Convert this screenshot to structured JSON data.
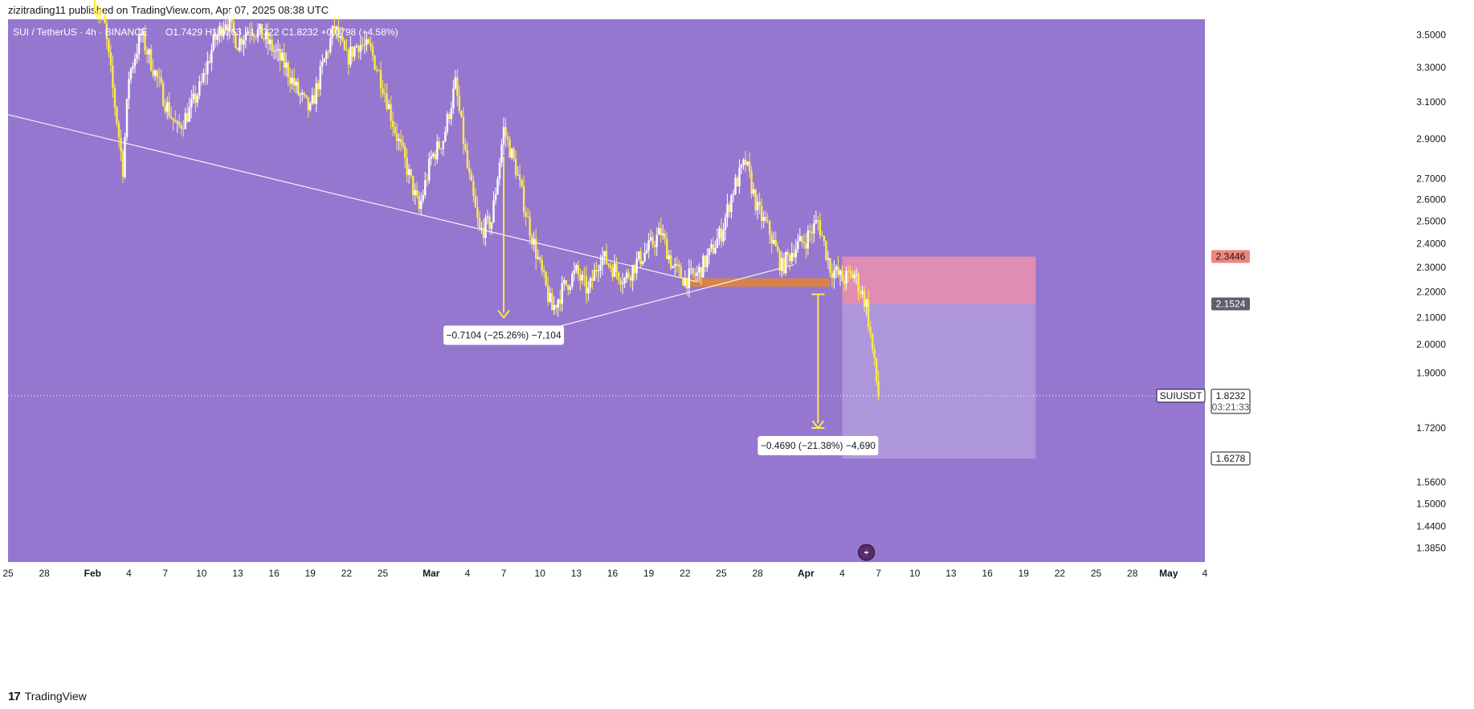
{
  "header": {
    "publish_line": "zizitrading11 published on TradingView.com, Apr 07, 2025 08:38 UTC"
  },
  "footer": {
    "brand_logo": "17",
    "brand_name": "TradingView"
  },
  "colors": {
    "plot_background": "#9577cf",
    "axis_background": "#ffffff",
    "candle_up": "#ffffff",
    "candle_down": "#ffe94a",
    "trendline": "#ffffff",
    "support_zone": "#e0863a",
    "stop_zone": "#e78fb0",
    "target_zone": "#b6a2dd",
    "stop_tag": "#f0867f",
    "entry_tag": "#5d606b",
    "arrow": "#ffe94a"
  },
  "chart_data": {
    "type": "candlestick",
    "symbol_legend": "SUI / TetherUS · 4h · BINANCE",
    "ohlc_legend": "O1.7429 H1.8263 L1.7322 C1.8232 +0.0798 (+4.58%)",
    "y_axis": {
      "scale": "log",
      "ylim": [
        1.35,
        3.6
      ],
      "ticks": [
        "3.5000",
        "3.3000",
        "3.1000",
        "2.9000",
        "2.7000",
        "2.6000",
        "2.5000",
        "2.4000",
        "2.3000",
        "2.2000",
        "2.1000",
        "2.0000",
        "1.9000",
        "1.7200",
        "1.5600",
        "1.5000",
        "1.4400",
        "1.3850"
      ]
    },
    "x_axis": {
      "xlim": [
        "2025-01-25",
        "2025-05-04"
      ],
      "ticks": [
        {
          "date": "2025-01-25",
          "label": "25"
        },
        {
          "date": "2025-01-28",
          "label": "28"
        },
        {
          "date": "2025-02-01",
          "label": "Feb",
          "strong": true
        },
        {
          "date": "2025-02-04",
          "label": "4"
        },
        {
          "date": "2025-02-07",
          "label": "7"
        },
        {
          "date": "2025-02-10",
          "label": "10"
        },
        {
          "date": "2025-02-13",
          "label": "13"
        },
        {
          "date": "2025-02-16",
          "label": "16"
        },
        {
          "date": "2025-02-19",
          "label": "19"
        },
        {
          "date": "2025-02-22",
          "label": "22"
        },
        {
          "date": "2025-02-25",
          "label": "25"
        },
        {
          "date": "2025-03-01",
          "label": "Mar",
          "strong": true
        },
        {
          "date": "2025-03-04",
          "label": "4"
        },
        {
          "date": "2025-03-07",
          "label": "7"
        },
        {
          "date": "2025-03-10",
          "label": "10"
        },
        {
          "date": "2025-03-13",
          "label": "13"
        },
        {
          "date": "2025-03-16",
          "label": "16"
        },
        {
          "date": "2025-03-19",
          "label": "19"
        },
        {
          "date": "2025-03-22",
          "label": "22"
        },
        {
          "date": "2025-03-25",
          "label": "25"
        },
        {
          "date": "2025-03-28",
          "label": "28"
        },
        {
          "date": "2025-04-01",
          "label": "Apr",
          "strong": true
        },
        {
          "date": "2025-04-04",
          "label": "4"
        },
        {
          "date": "2025-04-07",
          "label": "7"
        },
        {
          "date": "2025-04-10",
          "label": "10"
        },
        {
          "date": "2025-04-13",
          "label": "13"
        },
        {
          "date": "2025-04-16",
          "label": "16"
        },
        {
          "date": "2025-04-19",
          "label": "19"
        },
        {
          "date": "2025-04-22",
          "label": "22"
        },
        {
          "date": "2025-04-25",
          "label": "25"
        },
        {
          "date": "2025-04-28",
          "label": "28"
        },
        {
          "date": "2025-05-01",
          "label": "May",
          "strong": true
        },
        {
          "date": "2025-05-04",
          "label": "4"
        }
      ]
    },
    "price_path": [
      [
        "2025-02-01",
        3.75
      ],
      [
        "2025-02-02",
        3.55
      ],
      [
        "2025-02-03",
        3.0
      ],
      [
        "2025-02-03",
        2.75
      ],
      [
        "2025-02-04",
        3.25
      ],
      [
        "2025-02-05",
        3.5
      ],
      [
        "2025-02-06",
        3.3
      ],
      [
        "2025-02-07",
        3.1
      ],
      [
        "2025-02-08",
        2.95
      ],
      [
        "2025-02-09",
        3.05
      ],
      [
        "2025-02-10",
        3.2
      ],
      [
        "2025-02-11",
        3.45
      ],
      [
        "2025-02-12",
        3.6
      ],
      [
        "2025-02-13",
        3.45
      ],
      [
        "2025-02-14",
        3.55
      ],
      [
        "2025-02-15",
        3.5
      ],
      [
        "2025-02-16",
        3.4
      ],
      [
        "2025-02-17",
        3.3
      ],
      [
        "2025-02-18",
        3.15
      ],
      [
        "2025-02-19",
        3.05
      ],
      [
        "2025-02-20",
        3.3
      ],
      [
        "2025-02-21",
        3.55
      ],
      [
        "2025-02-22",
        3.35
      ],
      [
        "2025-02-23",
        3.45
      ],
      [
        "2025-02-24",
        3.4
      ],
      [
        "2025-02-25",
        3.2
      ],
      [
        "2025-02-26",
        2.95
      ],
      [
        "2025-02-27",
        2.75
      ],
      [
        "2025-02-28",
        2.55
      ],
      [
        "2025-03-01",
        2.8
      ],
      [
        "2025-03-02",
        2.9
      ],
      [
        "2025-03-03",
        3.2
      ],
      [
        "2025-03-04",
        2.75
      ],
      [
        "2025-03-05",
        2.45
      ],
      [
        "2025-03-06",
        2.5
      ],
      [
        "2025-03-07",
        2.95
      ],
      [
        "2025-03-08",
        2.75
      ],
      [
        "2025-03-09",
        2.5
      ],
      [
        "2025-03-10",
        2.3
      ],
      [
        "2025-03-11",
        2.13
      ],
      [
        "2025-03-12",
        2.22
      ],
      [
        "2025-03-13",
        2.28
      ],
      [
        "2025-03-14",
        2.2
      ],
      [
        "2025-03-15",
        2.35
      ],
      [
        "2025-03-16",
        2.3
      ],
      [
        "2025-03-17",
        2.25
      ],
      [
        "2025-03-18",
        2.32
      ],
      [
        "2025-03-19",
        2.38
      ],
      [
        "2025-03-20",
        2.45
      ],
      [
        "2025-03-21",
        2.3
      ],
      [
        "2025-03-22",
        2.25
      ],
      [
        "2025-03-23",
        2.27
      ],
      [
        "2025-03-24",
        2.35
      ],
      [
        "2025-03-25",
        2.45
      ],
      [
        "2025-03-26",
        2.65
      ],
      [
        "2025-03-27",
        2.78
      ],
      [
        "2025-03-28",
        2.55
      ],
      [
        "2025-03-29",
        2.45
      ],
      [
        "2025-03-30",
        2.3
      ],
      [
        "2025-03-31",
        2.38
      ],
      [
        "2025-04-01",
        2.42
      ],
      [
        "2025-04-02",
        2.5
      ],
      [
        "2025-04-03",
        2.3
      ],
      [
        "2025-04-04",
        2.25
      ],
      [
        "2025-04-05",
        2.27
      ],
      [
        "2025-04-06",
        2.15
      ],
      [
        "2025-04-07",
        1.82
      ]
    ],
    "trendline": [
      [
        "2025-01-25",
        3.03
      ],
      [
        "2025-03-23",
        2.24
      ]
    ],
    "trendline_lower": [
      [
        "2025-03-11",
        2.06
      ],
      [
        "2025-03-31",
        2.31
      ]
    ],
    "support_zone": {
      "x": [
        "2025-03-22",
        "2025-04-03"
      ],
      "y": [
        2.22,
        2.255
      ]
    },
    "stop_zone": {
      "x": [
        "2025-04-04",
        "2025-04-20"
      ],
      "y": [
        2.1524,
        2.3446
      ]
    },
    "target_zone": {
      "x": [
        "2025-04-04",
        "2025-04-20"
      ],
      "y": [
        1.6278,
        2.1524
      ]
    },
    "last_price": 1.8232,
    "annotations": [
      {
        "text": "−0.7104 (−25.26%) −7,104",
        "x": "2025-03-07",
        "y_from": 2.81,
        "y_to": 2.1
      },
      {
        "text": "−0.4690 (−21.38%) −4,690",
        "x": "2025-04-02",
        "y_from": 2.19,
        "y_to": 1.72
      }
    ],
    "price_tags": [
      {
        "value": "2.3446",
        "price": 2.3446,
        "kind": "stop"
      },
      {
        "value": "2.1524",
        "price": 2.1524,
        "kind": "entry"
      },
      {
        "value": "1.6278",
        "price": 1.6278,
        "kind": "target"
      }
    ],
    "last_tag": {
      "symbol": "SUIUSDT",
      "value": "1.8232",
      "countdown": "03:21:33"
    }
  }
}
